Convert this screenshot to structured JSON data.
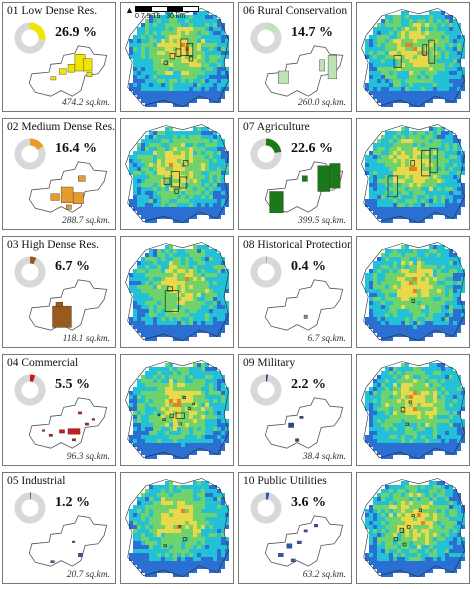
{
  "legend_panels": [
    {
      "title": "01 Low Dense Res.",
      "percent": "26.9 %",
      "area": "474.2 sq.km.",
      "fraction": 0.269,
      "color": "#f2e400"
    },
    {
      "title": "02 Medium Dense Res.",
      "percent": "16.4 %",
      "area": "288.7 sq.km.",
      "fraction": 0.164,
      "color": "#e89a2a"
    },
    {
      "title": "03 High Dense Res.",
      "percent": "6.7 %",
      "area": "118.1 sq.km.",
      "fraction": 0.067,
      "color": "#9a5a1c"
    },
    {
      "title": "04 Commercial",
      "percent": "5.5 %",
      "area": "96.3 sq.km.",
      "fraction": 0.055,
      "color": "#cc1a1a"
    },
    {
      "title": "05 Industrial",
      "percent": "1.2 %",
      "area": "20.7 sq.km.",
      "fraction": 0.012,
      "color": "#6a3fb0"
    },
    {
      "title": "06 Rural Conservation",
      "percent": "14.7 %",
      "area": "260.0 sq.km.",
      "fraction": 0.147,
      "color": "#bfe3b4"
    },
    {
      "title": "07 Agriculture",
      "percent": "22.6 %",
      "area": "399.5 sq.km.",
      "fraction": 0.226,
      "color": "#1a7a1a"
    },
    {
      "title": "08 Historical Protection",
      "percent": "0.4 %",
      "area": "6.7 sq.km.",
      "fraction": 0.004,
      "color": "#8a8a8a"
    },
    {
      "title": "09 Military",
      "percent": "2.2 %",
      "area": "38.4 sq.km.",
      "fraction": 0.022,
      "color": "#2a4a8a"
    },
    {
      "title": "10 Public Utilities",
      "percent": "3.6 %",
      "area": "63.2 sq.km.",
      "fraction": 0.036,
      "color": "#2a5ab0"
    }
  ],
  "scale": {
    "ticks": [
      "0",
      "7.5",
      "15",
      "30 km"
    ]
  },
  "north_arrow": "north-arrow-icon",
  "map_colors": {
    "blue": "#2a6fd1",
    "cyan": "#22c1d8",
    "green": "#6fd26a",
    "yellow": "#e8d84a",
    "orange": "#e0822c",
    "red": "#c8342a"
  }
}
